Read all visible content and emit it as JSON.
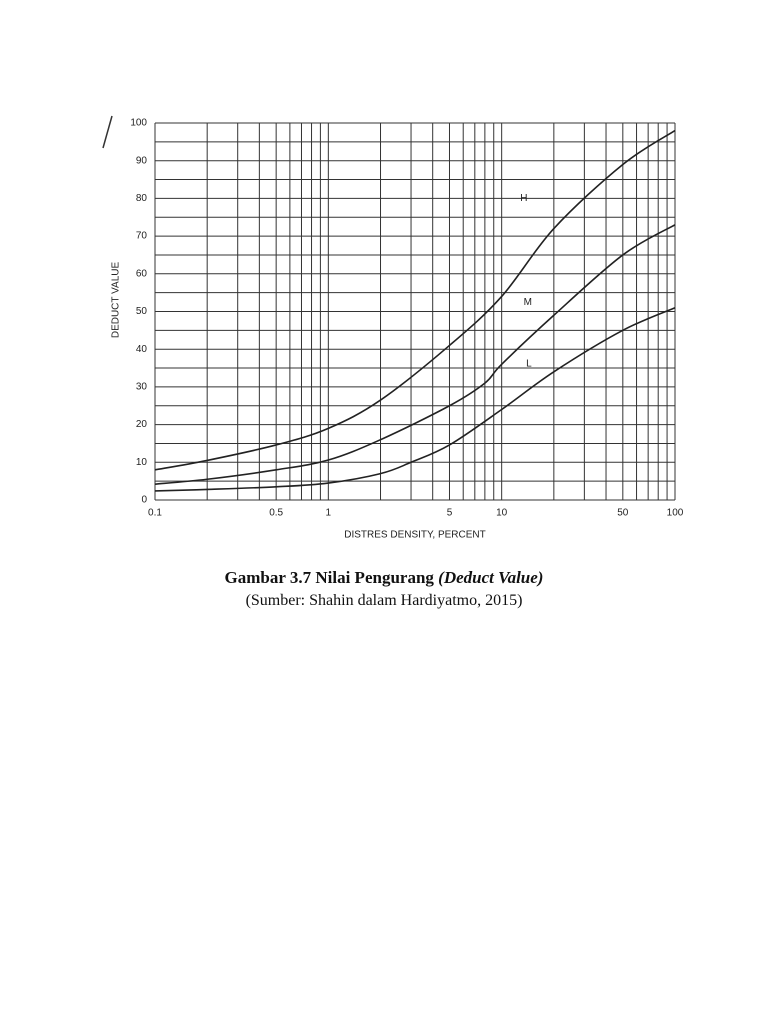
{
  "chart_data": {
    "type": "line",
    "xlabel": "DISTRES DENSITY, PERCENT",
    "ylabel": "DEDUCT VALUE",
    "xscale": "log",
    "xlim": [
      0.1,
      100
    ],
    "ylim": [
      0,
      100
    ],
    "xticks": [
      0.1,
      0.5,
      1,
      5,
      10,
      50,
      100
    ],
    "yticks": [
      0,
      10,
      20,
      30,
      40,
      50,
      60,
      70,
      80,
      90,
      100
    ],
    "xgrid": [
      0.1,
      0.2,
      0.3,
      0.4,
      0.5,
      0.6,
      0.7,
      0.8,
      0.9,
      1,
      2,
      3,
      4,
      5,
      6,
      7,
      8,
      9,
      10,
      20,
      30,
      40,
      50,
      60,
      70,
      80,
      90,
      100
    ],
    "ygrid": [
      0,
      5,
      10,
      15,
      20,
      25,
      30,
      35,
      40,
      45,
      50,
      55,
      60,
      65,
      70,
      75,
      80,
      85,
      90,
      95,
      100
    ],
    "grid": true,
    "series": [
      {
        "name": "H",
        "color": "#222222",
        "x": [
          0.1,
          0.2,
          0.5,
          1,
          2,
          5,
          10,
          20,
          50,
          100
        ],
        "values": [
          8,
          10.5,
          14.6,
          19,
          26.5,
          41,
          54,
          72,
          89,
          98
        ]
      },
      {
        "name": "M",
        "color": "#222222",
        "x": [
          0.1,
          0.2,
          0.5,
          1,
          2,
          5,
          8,
          10,
          20,
          50,
          100
        ],
        "values": [
          4.2,
          5.5,
          8,
          10.6,
          16,
          25,
          31,
          36,
          49,
          65,
          73
        ]
      },
      {
        "name": "L",
        "color": "#222222",
        "x": [
          0.1,
          0.2,
          0.5,
          1,
          2,
          3,
          5,
          10,
          20,
          50,
          100
        ],
        "values": [
          2.4,
          2.8,
          3.5,
          4.5,
          7,
          10,
          14.6,
          24,
          34,
          45,
          51
        ]
      }
    ],
    "caption": {
      "title": "Gambar 3.7 Nilai Pengurang",
      "title_italic": "(Deduct Value)",
      "source": "(Sumber: Shahin dalam Hardiyatmo, 2015)"
    }
  }
}
